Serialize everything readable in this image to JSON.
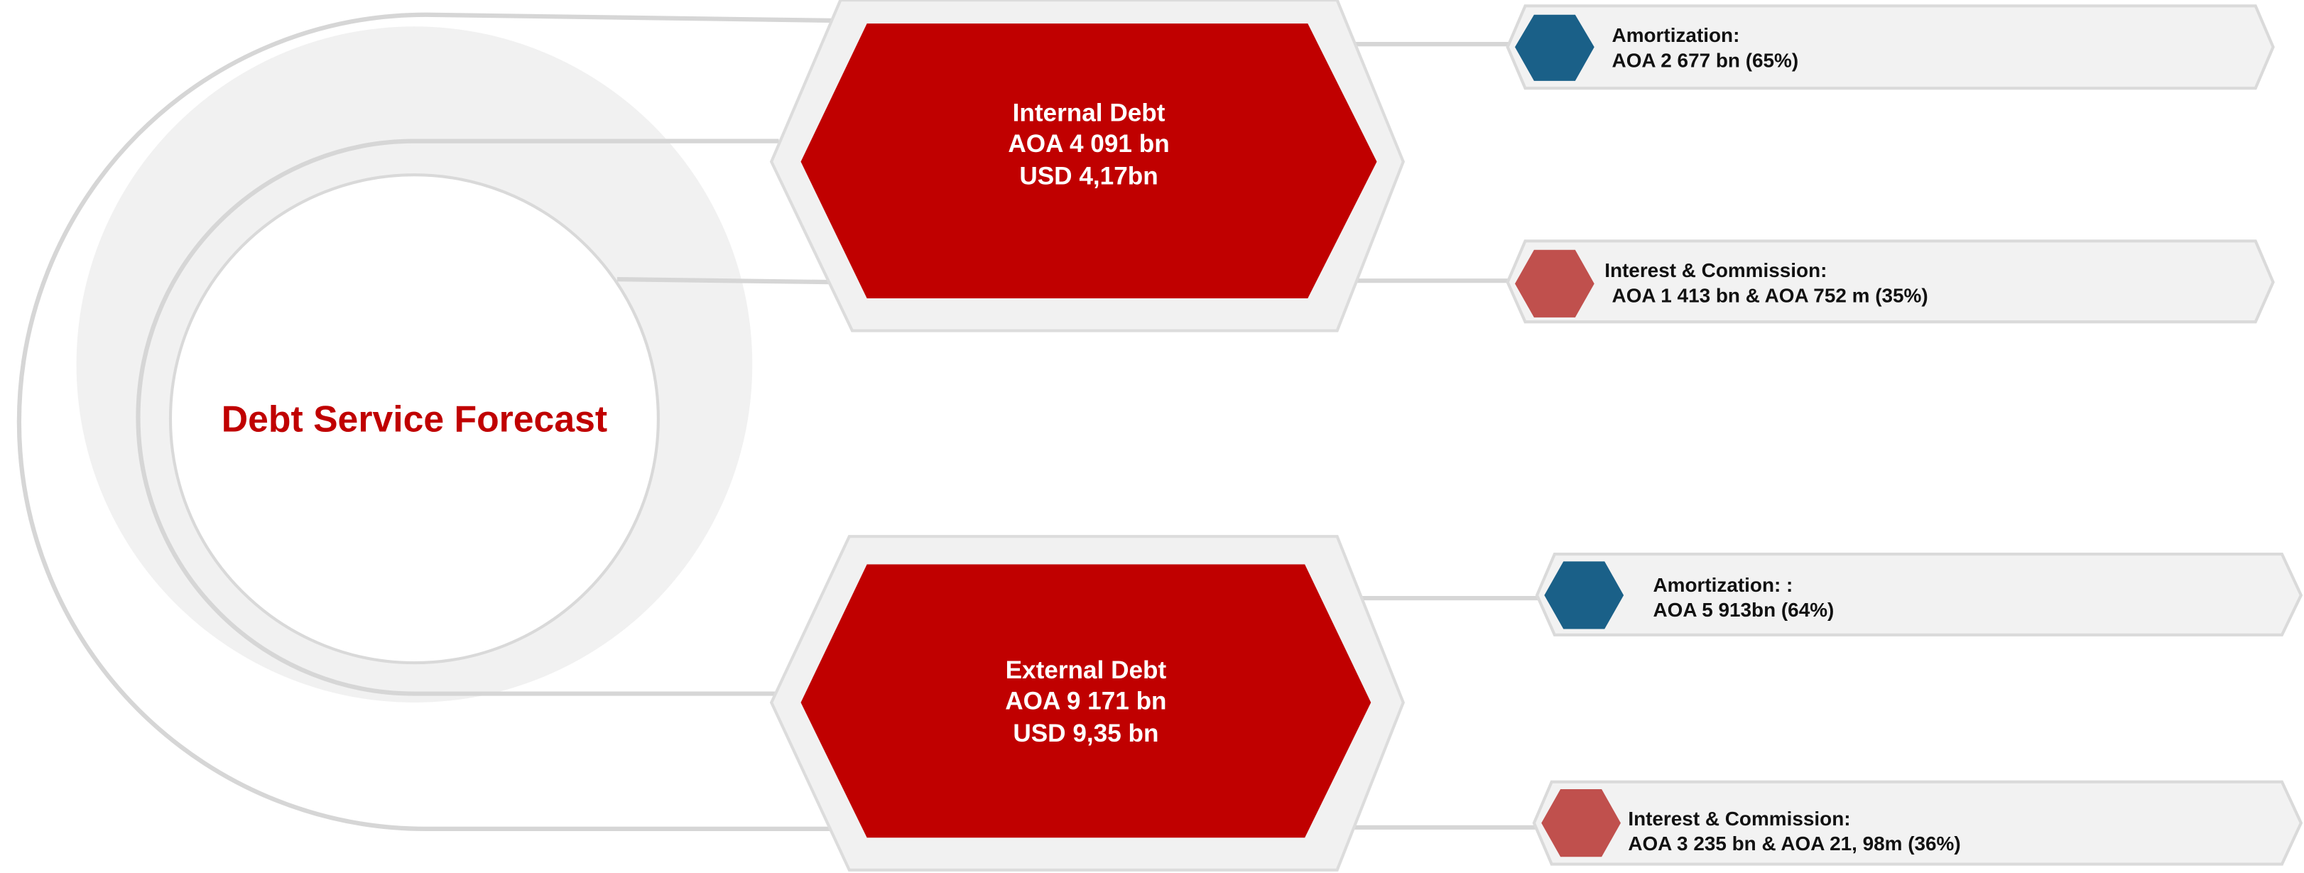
{
  "center": {
    "title": "Debt Service Forecast"
  },
  "debts": [
    {
      "lines": [
        "Internal Debt",
        "AOA 4 091 bn",
        "USD 4,17bn"
      ],
      "items": [
        {
          "label": "Amortization:",
          "value": "AOA 2 677 bn (65%)"
        },
        {
          "label": "Interest & Commission:",
          "value": "AOA 1 413 bn & AOA 752 m (35%)"
        }
      ]
    },
    {
      "lines": [
        "External Debt",
        "AOA 9 171 bn",
        "USD 9,35 bn"
      ],
      "items": [
        {
          "label": "Amortization: :",
          "value": "AOA 5 913bn (64%)"
        },
        {
          "label": "Interest & Commission:",
          "value": "AOA 3 235 bn & AOA 21, 98m (36%)"
        }
      ]
    }
  ]
}
